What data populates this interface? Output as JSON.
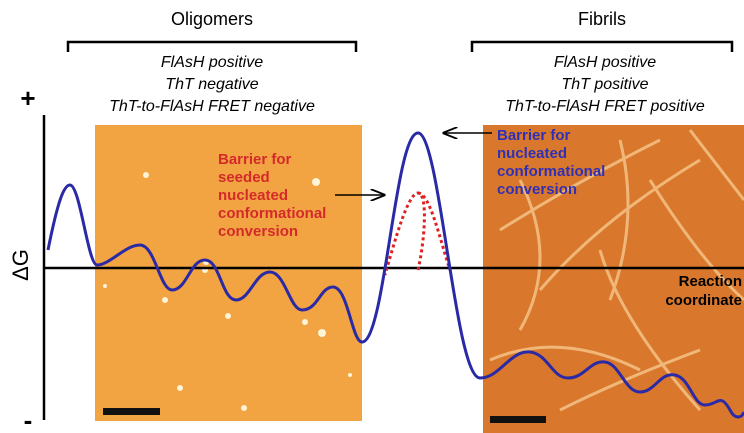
{
  "headers": {
    "left": "Oligomers",
    "right": "Fibrils"
  },
  "conditions": {
    "left": [
      "FlAsH positive",
      "ThT negative",
      "ThT-to-FlAsH FRET negative"
    ],
    "right": [
      "FlAsH positive",
      "ThT positive",
      "ThT-to-FlAsH FRET positive"
    ]
  },
  "axis": {
    "plus": "+",
    "label": "ΔG",
    "minus": "-",
    "x_label": [
      "Reaction",
      "coordinate"
    ]
  },
  "annotations": {
    "seeded": [
      "Barrier for",
      "seeded",
      "nucleated",
      "conformational",
      "conversion"
    ],
    "nucleated": [
      "Barrier for",
      "nucleated",
      "conformational",
      "conversion"
    ]
  }
}
